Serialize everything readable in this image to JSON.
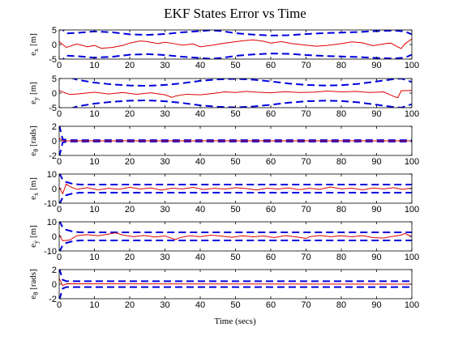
{
  "chart_data": {
    "type": "line",
    "title": "EKF States Error vs Time",
    "xlabel": "Time (secs)",
    "xlim": [
      0,
      100
    ],
    "xticks": [
      0,
      10,
      20,
      30,
      40,
      50,
      60,
      70,
      80,
      90,
      100
    ],
    "colors": {
      "error": "#dd0000",
      "bound": "#0000dd"
    },
    "subplots": [
      {
        "ylabel_sym": "e",
        "ylabel_sub": "x",
        "ylabel_unit": "[m]",
        "ylim": [
          -5,
          5
        ],
        "yticks": [
          5,
          0,
          -5
        ],
        "bound": {
          "points": [
            [
              0,
              6.5
            ],
            [
              2,
              3.8
            ],
            [
              5,
              4.0
            ],
            [
              10,
              4.5
            ],
            [
              15,
              4.2
            ],
            [
              20,
              3.5
            ],
            [
              25,
              3.3
            ],
            [
              30,
              3.6
            ],
            [
              35,
              4.2
            ],
            [
              40,
              4.6
            ],
            [
              43,
              4.9
            ],
            [
              46,
              4.6
            ],
            [
              50,
              3.9
            ],
            [
              55,
              3.4
            ],
            [
              60,
              3.1
            ],
            [
              65,
              3.2
            ],
            [
              70,
              3.6
            ],
            [
              75,
              3.9
            ],
            [
              80,
              4.1
            ],
            [
              85,
              4.3
            ],
            [
              90,
              4.6
            ],
            [
              95,
              4.8
            ],
            [
              98,
              4.5
            ],
            [
              100,
              3.5
            ]
          ]
        },
        "error": {
          "points": [
            [
              0,
              1.0
            ],
            [
              2,
              -1.0
            ],
            [
              5,
              0.2
            ],
            [
              8,
              -0.8
            ],
            [
              10,
              -0.3
            ],
            [
              12,
              -1.3
            ],
            [
              15,
              -1.0
            ],
            [
              18,
              -0.3
            ],
            [
              20,
              0.5
            ],
            [
              23,
              1.2
            ],
            [
              25,
              1.0
            ],
            [
              28,
              0.3
            ],
            [
              30,
              0.8
            ],
            [
              32,
              0.4
            ],
            [
              35,
              -0.2
            ],
            [
              38,
              0.2
            ],
            [
              40,
              -0.8
            ],
            [
              43,
              -0.3
            ],
            [
              46,
              0.3
            ],
            [
              49,
              0.8
            ],
            [
              52,
              1.3
            ],
            [
              55,
              1.6
            ],
            [
              58,
              1.1
            ],
            [
              60,
              0.5
            ],
            [
              63,
              1.0
            ],
            [
              66,
              0.3
            ],
            [
              70,
              -0.2
            ],
            [
              73,
              -0.6
            ],
            [
              76,
              -0.3
            ],
            [
              80,
              0.3
            ],
            [
              83,
              0.9
            ],
            [
              86,
              0.6
            ],
            [
              89,
              -0.4
            ],
            [
              92,
              0.2
            ],
            [
              94,
              0.5
            ],
            [
              96,
              -0.8
            ],
            [
              97,
              -1.4
            ],
            [
              98,
              0.2
            ],
            [
              100,
              1.9
            ]
          ]
        }
      },
      {
        "ylabel_sym": "e",
        "ylabel_sub": "y",
        "ylabel_unit": "[m]",
        "ylim": [
          -5,
          5
        ],
        "yticks": [
          5,
          0,
          -5
        ],
        "bound": {
          "points": [
            [
              0,
              6.0
            ],
            [
              3,
              5.4
            ],
            [
              5,
              4.6
            ],
            [
              10,
              3.6
            ],
            [
              15,
              3.0
            ],
            [
              20,
              2.6
            ],
            [
              25,
              2.5
            ],
            [
              30,
              2.8
            ],
            [
              35,
              3.4
            ],
            [
              40,
              4.2
            ],
            [
              45,
              4.7
            ],
            [
              50,
              4.9
            ],
            [
              55,
              4.6
            ],
            [
              60,
              4.0
            ],
            [
              65,
              3.3
            ],
            [
              70,
              2.8
            ],
            [
              75,
              2.6
            ],
            [
              80,
              2.7
            ],
            [
              85,
              3.2
            ],
            [
              90,
              4.0
            ],
            [
              95,
              4.8
            ],
            [
              97,
              5.0
            ],
            [
              100,
              3.8
            ]
          ]
        },
        "error": {
          "points": [
            [
              0,
              0.8
            ],
            [
              3,
              -0.5
            ],
            [
              6,
              -0.2
            ],
            [
              10,
              0.3
            ],
            [
              14,
              -0.3
            ],
            [
              18,
              0.2
            ],
            [
              22,
              -0.4
            ],
            [
              26,
              0.1
            ],
            [
              30,
              -0.6
            ],
            [
              32,
              -1.5
            ],
            [
              33,
              -1.0
            ],
            [
              36,
              -0.4
            ],
            [
              40,
              -0.6
            ],
            [
              43,
              -0.2
            ],
            [
              47,
              0.4
            ],
            [
              50,
              0.2
            ],
            [
              53,
              0.6
            ],
            [
              56,
              0.3
            ],
            [
              60,
              0.1
            ],
            [
              64,
              0.5
            ],
            [
              68,
              0.2
            ],
            [
              72,
              0.3
            ],
            [
              76,
              0.7
            ],
            [
              80,
              0.4
            ],
            [
              84,
              0.6
            ],
            [
              88,
              0.2
            ],
            [
              92,
              0.4
            ],
            [
              95,
              -1.2
            ],
            [
              96,
              -1.6
            ],
            [
              97,
              0.8
            ],
            [
              100,
              0.9
            ]
          ]
        }
      },
      {
        "ylabel_sym": "e",
        "ylabel_sub": "θ",
        "ylabel_unit": "[rads]",
        "ylim": [
          -2,
          2
        ],
        "yticks": [
          2,
          0,
          -2
        ],
        "bound": {
          "points": [
            [
              0,
              2.2
            ],
            [
              1,
              0.2
            ],
            [
              3,
              0.1
            ],
            [
              100,
              0.1
            ]
          ]
        },
        "error": {
          "points": [
            [
              0,
              0.4
            ],
            [
              1,
              0.0
            ],
            [
              100,
              0.0
            ]
          ]
        }
      },
      {
        "ylabel_sym": "e",
        "ylabel_sub": "ẋ",
        "ylabel_unit": "[m]",
        "ylim": [
          -10,
          10
        ],
        "yticks": [
          10,
          0,
          -10
        ],
        "bound": {
          "points": [
            [
              0,
              11
            ],
            [
              1,
              6
            ],
            [
              2,
              4.5
            ],
            [
              4,
              3.2
            ],
            [
              6,
              2.8
            ],
            [
              100,
              2.8
            ]
          ]
        },
        "error": {
          "points": [
            [
              0,
              1.0
            ],
            [
              1,
              -3.5
            ],
            [
              2,
              3.2
            ],
            [
              3,
              1.5
            ],
            [
              5,
              -0.5
            ],
            [
              8,
              0.6
            ],
            [
              11,
              -0.8
            ],
            [
              14,
              0.2
            ],
            [
              17,
              -0.4
            ],
            [
              20,
              0.9
            ],
            [
              23,
              -0.3
            ],
            [
              26,
              0.5
            ],
            [
              29,
              -1.0
            ],
            [
              32,
              0.3
            ],
            [
              35,
              -0.2
            ],
            [
              38,
              0.8
            ],
            [
              41,
              -0.6
            ],
            [
              44,
              0.2
            ],
            [
              47,
              -0.3
            ],
            [
              50,
              0.6
            ],
            [
              53,
              0.1
            ],
            [
              56,
              -0.9
            ],
            [
              59,
              0.3
            ],
            [
              62,
              -0.3
            ],
            [
              65,
              0.5
            ],
            [
              68,
              -0.7
            ],
            [
              71,
              0.2
            ],
            [
              74,
              -0.4
            ],
            [
              77,
              1.1
            ],
            [
              80,
              -0.2
            ],
            [
              83,
              0.3
            ],
            [
              86,
              -0.8
            ],
            [
              89,
              0.4
            ],
            [
              92,
              -0.2
            ],
            [
              95,
              0.6
            ],
            [
              97,
              -0.5
            ],
            [
              100,
              0.3
            ]
          ]
        }
      },
      {
        "ylabel_sym": "e",
        "ylabel_sub": "ẏ",
        "ylabel_unit": "[m]",
        "ylim": [
          -10,
          10
        ],
        "yticks": [
          10,
          0,
          -10
        ],
        "bound": {
          "points": [
            [
              0,
              11
            ],
            [
              1,
              6
            ],
            [
              2,
              4.5
            ],
            [
              4,
              3.2
            ],
            [
              6,
              2.8
            ],
            [
              100,
              2.8
            ]
          ]
        },
        "error": {
          "points": [
            [
              0,
              1.0
            ],
            [
              1,
              -3.0
            ],
            [
              3,
              -2.5
            ],
            [
              5,
              0.5
            ],
            [
              8,
              1.2
            ],
            [
              11,
              0.4
            ],
            [
              14,
              1.6
            ],
            [
              16,
              2.4
            ],
            [
              18,
              1.0
            ],
            [
              21,
              -0.2
            ],
            [
              24,
              0.6
            ],
            [
              27,
              -0.4
            ],
            [
              30,
              0.3
            ],
            [
              33,
              -2.2
            ],
            [
              34,
              -1.0
            ],
            [
              37,
              0.4
            ],
            [
              40,
              -0.2
            ],
            [
              43,
              0.8
            ],
            [
              46,
              0.2
            ],
            [
              49,
              -0.6
            ],
            [
              52,
              0.4
            ],
            [
              55,
              -0.3
            ],
            [
              58,
              0.3
            ],
            [
              61,
              -0.8
            ],
            [
              64,
              0.5
            ],
            [
              67,
              -0.3
            ],
            [
              70,
              -1.4
            ],
            [
              71,
              -0.2
            ],
            [
              74,
              0.6
            ],
            [
              77,
              -0.2
            ],
            [
              80,
              0.4
            ],
            [
              83,
              -0.3
            ],
            [
              86,
              0.5
            ],
            [
              89,
              -0.8
            ],
            [
              92,
              -1.2
            ],
            [
              94,
              -0.2
            ],
            [
              97,
              0.9
            ],
            [
              98,
              2.0
            ],
            [
              100,
              -0.2
            ]
          ]
        }
      },
      {
        "ylabel_sym": "e",
        "ylabel_sub": "θ̇",
        "ylabel_unit": "[rads]",
        "ylim": [
          -2,
          2
        ],
        "yticks": [
          2,
          0,
          -2
        ],
        "bound": {
          "points": [
            [
              0,
              2.2
            ],
            [
              1,
              0.6
            ],
            [
              2,
              0.4
            ],
            [
              100,
              0.4
            ]
          ]
        },
        "error": {
          "points": [
            [
              0,
              0.8
            ],
            [
              1,
              -0.2
            ],
            [
              2,
              0.05
            ],
            [
              100,
              0.0
            ]
          ]
        }
      }
    ]
  }
}
